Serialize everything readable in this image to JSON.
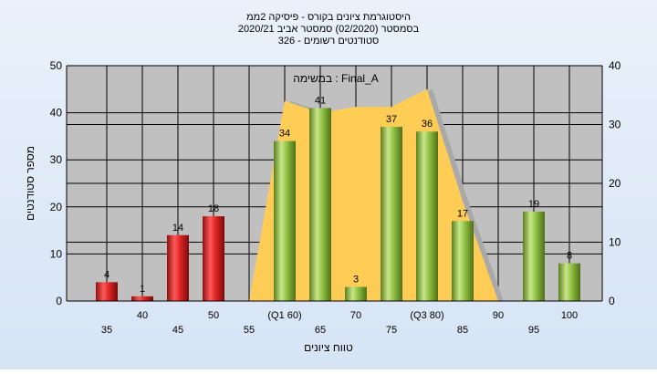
{
  "chart_data": {
    "type": "bar",
    "title_lines": [
      "היסטוגרמת ציונים בקורס - פיסיקה 2ממ",
      "בסמסטר  (02/2020)  סמסטר אביב 2020/21",
      "סטודנטים רשומים - 326"
    ],
    "annotation": "במשימה : Final_A",
    "xlabel": "טווח ציונים",
    "ylabel": "מספר סטודנטים",
    "ylim": [
      0,
      50
    ],
    "yticks": [
      0,
      10,
      20,
      30,
      40,
      50
    ],
    "y2lim": [
      0,
      40
    ],
    "y2ticks": [
      0,
      10,
      20,
      30,
      40
    ],
    "categories": [
      "35",
      "40",
      "45",
      "50",
      "55",
      "(Q1 60)",
      "65",
      "70",
      "75",
      "(Q3 80)",
      "85",
      "90",
      "95",
      "100"
    ],
    "values": [
      4,
      1,
      14,
      18,
      0,
      34,
      41,
      3,
      37,
      36,
      17,
      0,
      19,
      8
    ],
    "value_labels": [
      "4",
      "1",
      "14",
      "18",
      "",
      "34",
      "41",
      "3",
      "37",
      "36",
      "17",
      "",
      "19",
      "8"
    ],
    "bar_colors": [
      "red",
      "red",
      "red",
      "red",
      "none",
      "green",
      "green",
      "green",
      "green",
      "green",
      "green",
      "none",
      "green",
      "green"
    ],
    "envelope_secondary": [
      0,
      0,
      0,
      0,
      0,
      34,
      32,
      33,
      33,
      36,
      17,
      0,
      0,
      0
    ],
    "grid": true,
    "colors": {
      "background": "#dce8f6",
      "plot_bg": "#c0c0c0",
      "grid": "#000000",
      "red_bar": "#dd2222",
      "green_bar": "#8fc043",
      "envelope_fill": "#ffcc55",
      "envelope_grey": "#a9a9a9"
    }
  }
}
